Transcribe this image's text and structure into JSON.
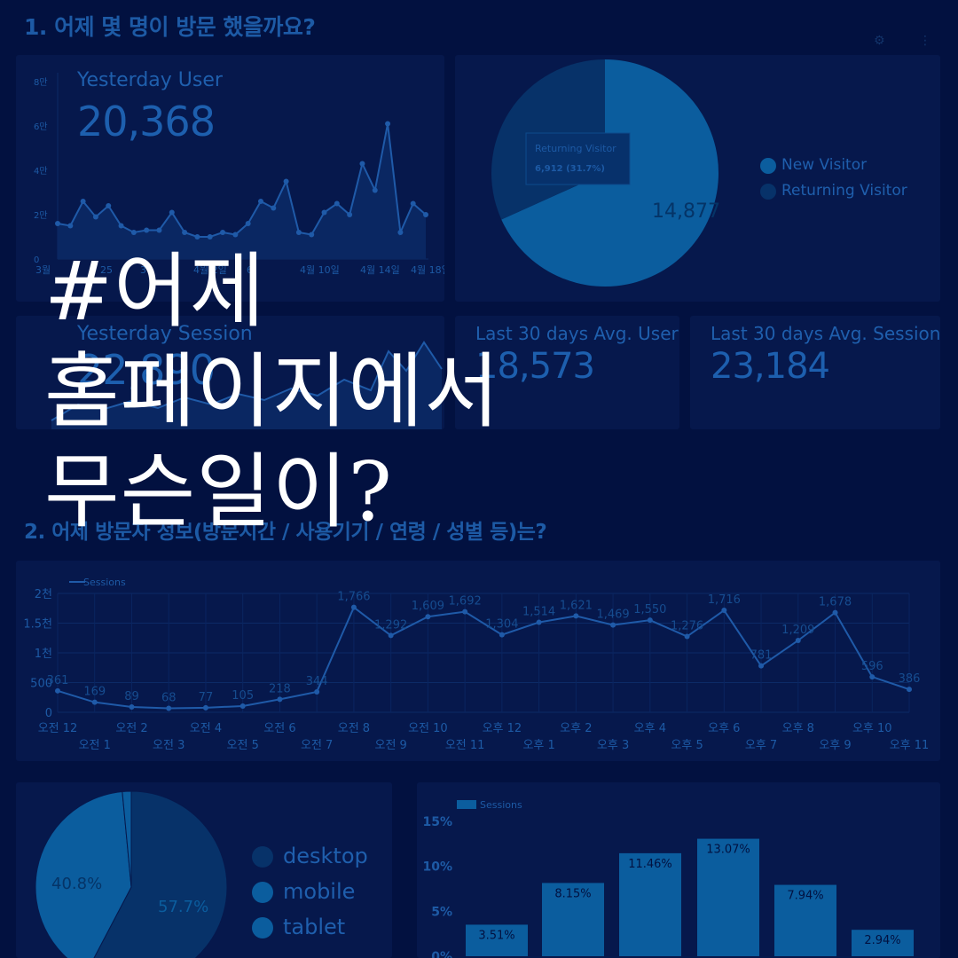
{
  "section1": {
    "title": "1. 어제 몇 명이 방문 했을까요?"
  },
  "section2": {
    "title": "2. 어제 방문자 정보(방문시간 / 사용기기 / 연령 / 성별 등)는?"
  },
  "kpi": {
    "yesterday_user": {
      "label": "Yesterday User",
      "value": "20,368"
    },
    "yesterday_session": {
      "label": "Yesterday Session",
      "value": "22,890"
    },
    "avg_user": {
      "label": "Last 30 days Avg. User",
      "value": "18,573"
    },
    "avg_session": {
      "label": "Last 30 days Avg. Session",
      "value": "23,184"
    }
  },
  "overlay": {
    "line1": "#어제",
    "line2": "홈페이지에서",
    "line3": "무슨일이?"
  },
  "toolbar": {
    "settings_icon": "gear-icon",
    "menu_icon": "more-vertical-icon"
  },
  "colors": {
    "background": "#021140",
    "panel": "#06184c",
    "accent": "#0b5d9e",
    "dark_slice": "#073269"
  },
  "chart_data": [
    {
      "id": "daily_users",
      "type": "area",
      "y_ticks": [
        "8만",
        "6만",
        "4만",
        "2만",
        "0"
      ],
      "x_ticks": [
        "3월",
        "25",
        "3",
        "4월 2일",
        "6",
        "4월 10일",
        "4월 14일",
        "4월 18일"
      ],
      "ylim": [
        0,
        80000
      ],
      "values": [
        16000,
        15000,
        26000,
        19000,
        24000,
        15000,
        12000,
        13000,
        13000,
        21000,
        12000,
        10000,
        10000,
        12000,
        11000,
        16000,
        26000,
        23000,
        35000,
        12000,
        11000,
        21000,
        25000,
        20000,
        43000,
        31000,
        61000,
        12000,
        25000,
        20000
      ]
    },
    {
      "id": "visitor_type",
      "type": "pie",
      "slices": [
        {
          "label": "New Visitor",
          "value": 14877,
          "color": "#0b5d9e"
        },
        {
          "label": "Returning Visitor",
          "value": 6912,
          "color": "#073269"
        }
      ],
      "slice_label": "14,877",
      "tooltip": {
        "title": "Returning Visitor",
        "value": "6,912 (31.7%)"
      }
    },
    {
      "id": "hourly_sessions",
      "type": "line",
      "legend": "Sessions",
      "y_ticks": [
        "2천",
        "1.5천",
        "1천",
        "500",
        "0"
      ],
      "ylim": [
        0,
        2000
      ],
      "categories": [
        "오전 12",
        "오전 1",
        "오전 2",
        "오전 3",
        "오전 4",
        "오전 5",
        "오전 6",
        "오전 7",
        "오전 8",
        "오전 9",
        "오전 10",
        "오전 11",
        "오후 12",
        "오후 1",
        "오후 2",
        "오후 3",
        "오후 4",
        "오후 5",
        "오후 6",
        "오후 7",
        "오후 8",
        "오후 9",
        "오후 10",
        "오후 11"
      ],
      "values": [
        361,
        169,
        89,
        68,
        77,
        105,
        218,
        344,
        1766,
        1292,
        1609,
        1692,
        1304,
        1514,
        1621,
        1469,
        1550,
        1276,
        1716,
        781,
        1209,
        1678,
        596,
        386
      ],
      "labels": [
        "361",
        "169",
        "89",
        "68",
        "77",
        "105",
        "218",
        "344",
        "1,766",
        "1,292",
        "1,609",
        "1,692",
        "1,304",
        "1,514",
        "1,621",
        "1,469",
        "1,550",
        "1,276",
        "1,716",
        "781",
        "1,209",
        "1,678",
        "596",
        "386"
      ]
    },
    {
      "id": "device",
      "type": "pie",
      "slices": [
        {
          "label": "desktop",
          "value": 57.7,
          "color": "#073269"
        },
        {
          "label": "mobile",
          "value": 40.8,
          "color": "#0b5d9e"
        },
        {
          "label": "tablet",
          "value": 1.5,
          "color": "#0b5d9e"
        }
      ],
      "slice_labels": [
        "57.7%",
        "40.8%"
      ]
    },
    {
      "id": "age_sessions",
      "type": "bar",
      "legend": "Sessions",
      "y_ticks": [
        "15%",
        "10%",
        "5%",
        "0%"
      ],
      "ylim": [
        0,
        15
      ],
      "values": [
        3.51,
        8.15,
        11.46,
        13.07,
        7.94,
        2.94
      ],
      "labels": [
        "3.51%",
        "8.15%",
        "11.46%",
        "13.07%",
        "7.94%",
        "2.94%"
      ]
    }
  ]
}
